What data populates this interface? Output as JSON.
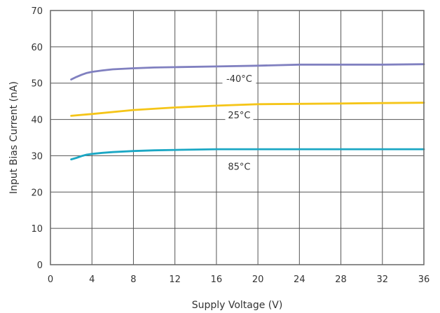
{
  "chart_data": {
    "type": "line",
    "title": "",
    "xlabel": "Supply Voltage (V)",
    "ylabel": "Input Bias Current (nA)",
    "xlim": [
      0,
      36
    ],
    "ylim": [
      0,
      70
    ],
    "xticks": [
      0,
      4,
      8,
      12,
      16,
      20,
      24,
      28,
      32,
      36
    ],
    "yticks": [
      0,
      10,
      20,
      30,
      40,
      50,
      60,
      70
    ],
    "grid": true,
    "legend": "inline labels",
    "series": [
      {
        "name": "-40°C",
        "color": "#8080c0",
        "x": [
          2,
          2.5,
          3,
          3.5,
          4,
          5,
          6,
          8,
          10,
          12,
          16,
          20,
          24,
          28,
          32,
          36
        ],
        "y": [
          51,
          51.7,
          52.3,
          52.8,
          53.1,
          53.5,
          53.8,
          54.1,
          54.3,
          54.4,
          54.6,
          54.8,
          55.1,
          55.1,
          55.1,
          55.2
        ]
      },
      {
        "name": "25°C",
        "color": "#f5c518",
        "x": [
          2,
          4,
          8,
          12,
          16,
          20,
          24,
          28,
          32,
          36
        ],
        "y": [
          41,
          41.5,
          42.6,
          43.3,
          43.8,
          44.2,
          44.3,
          44.4,
          44.5,
          44.6
        ]
      },
      {
        "name": "85°C",
        "color": "#1ba7c4",
        "x": [
          2,
          2.5,
          3,
          3.5,
          4,
          5,
          6,
          8,
          10,
          12,
          16,
          20,
          24,
          28,
          32,
          36
        ],
        "y": [
          29,
          29.4,
          29.9,
          30.3,
          30.5,
          30.8,
          31,
          31.3,
          31.5,
          31.6,
          31.8,
          31.8,
          31.8,
          31.8,
          31.8,
          31.8
        ]
      }
    ],
    "annotations": [
      {
        "text": "-40°C",
        "x": 18.2,
        "y": 50.5
      },
      {
        "text": "25°C",
        "x": 18.2,
        "y": 40.5
      },
      {
        "text": "85°C",
        "x": 18.2,
        "y": 26.3
      }
    ]
  }
}
